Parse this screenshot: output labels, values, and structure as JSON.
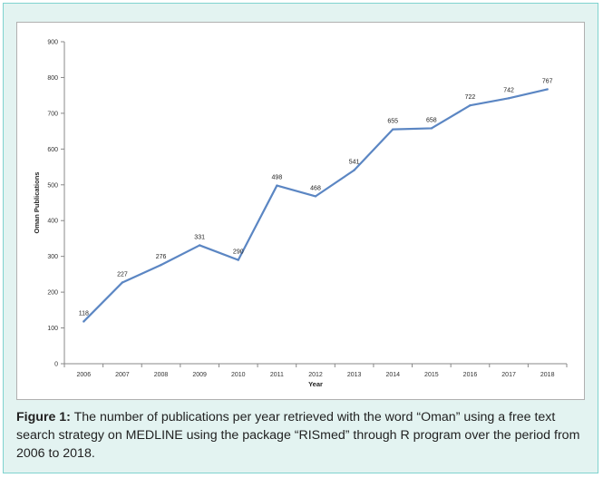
{
  "colors": {
    "frame_border": "#7fd3cf",
    "frame_bg": "#e3f3f1",
    "line": "#5b86c3",
    "caption_text": "#222222"
  },
  "caption": {
    "label": "Figure 1:",
    "text": " The number of publications per year retrieved with the word “Oman” using a free text search strategy on MEDLINE using the package “RISmed” through R program over the period from 2006 to 2018."
  },
  "chart_data": {
    "type": "line",
    "title": "",
    "xlabel": "Year",
    "ylabel": "Oman Publications",
    "categories": [
      "2006",
      "2007",
      "2008",
      "2009",
      "2010",
      "2011",
      "2012",
      "2013",
      "2014",
      "2015",
      "2016",
      "2017",
      "2018"
    ],
    "series": [
      {
        "values": [
          118,
          227,
          276,
          331,
          290,
          498,
          468,
          541,
          655,
          658,
          722,
          742,
          767
        ]
      }
    ],
    "data_labels": [
      "118",
      "227",
      "276",
      "331",
      "290",
      "498",
      "468",
      "541",
      "655",
      "658",
      "722",
      "742",
      "767"
    ],
    "ylim": [
      0,
      900
    ],
    "yticks": [
      "0",
      "100",
      "200",
      "300",
      "400",
      "500",
      "600",
      "700",
      "800",
      "900"
    ],
    "grid": false,
    "legend": "none"
  }
}
